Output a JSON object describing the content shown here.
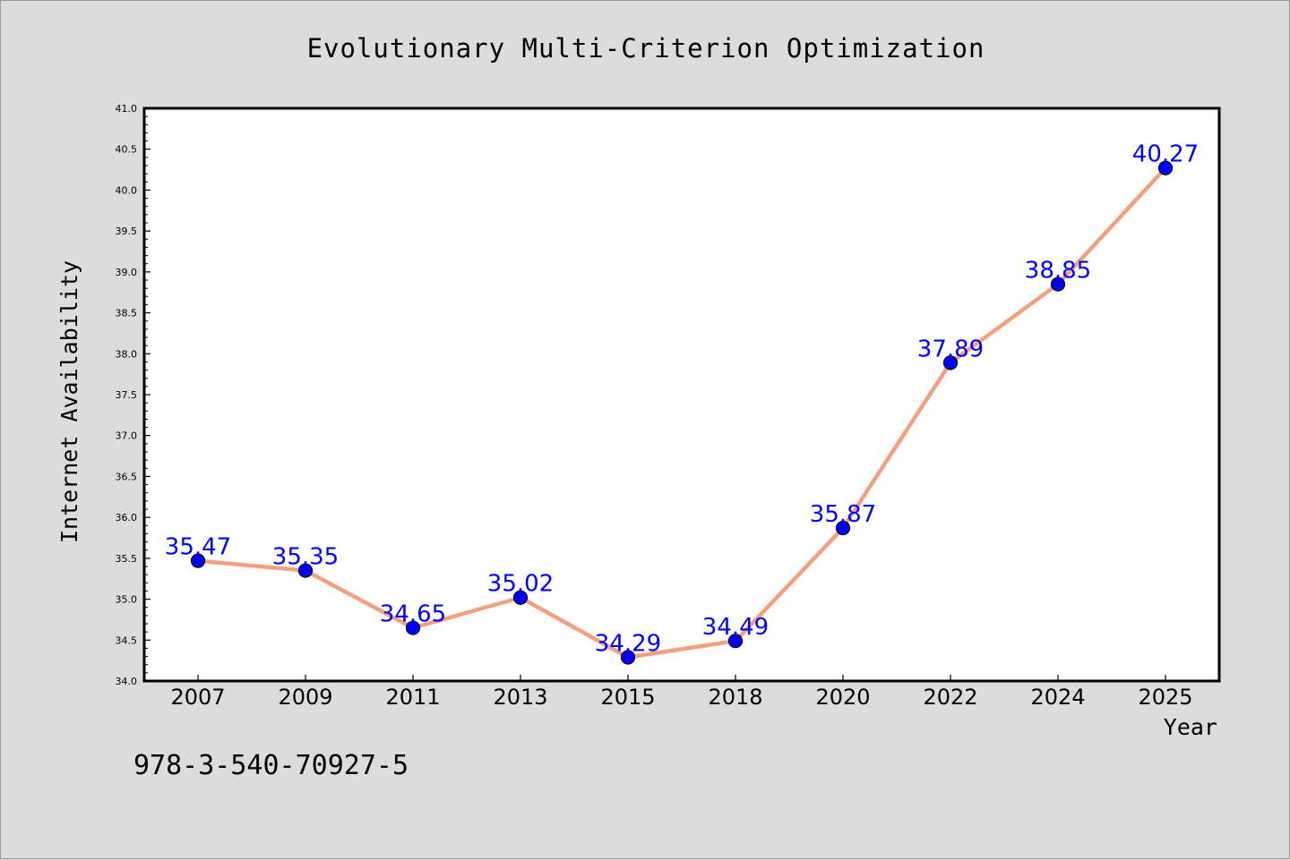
{
  "chart_data": {
    "type": "line",
    "title": "Evolutionary Multi-Criterion Optimization",
    "xlabel": "Year",
    "ylabel": "Internet Availability",
    "categories": [
      "2007",
      "2009",
      "2011",
      "2013",
      "2015",
      "2018",
      "2020",
      "2022",
      "2024",
      "2025"
    ],
    "series": [
      {
        "values": [
          35.47,
          35.35,
          34.65,
          35.02,
          34.29,
          34.49,
          35.87,
          37.89,
          38.85,
          40.27
        ]
      }
    ],
    "data_labels": [
      "35.47",
      "35.35",
      "34.65",
      "35.02",
      "34.29",
      "34.49",
      "35.87",
      "37.89",
      "38.85",
      "40.27"
    ],
    "ylim": [
      34.0,
      41.0
    ],
    "y_ticks": [
      "34.0",
      "34.5",
      "35.0",
      "35.5",
      "36.0",
      "36.5",
      "37.0",
      "37.5",
      "38.0",
      "38.5",
      "39.0",
      "39.5",
      "40.0",
      "40.5",
      "41.0"
    ],
    "grid": false,
    "legend": "none",
    "colors": {
      "line": "#f4a07e",
      "marker": "#0000ff",
      "marker_edge": "#000000",
      "data_label": "#0000ff",
      "plot_background": "#ffffff",
      "figure_background": "#dcdcdc"
    }
  },
  "footer": {
    "note": "978-3-540-70927-5"
  }
}
